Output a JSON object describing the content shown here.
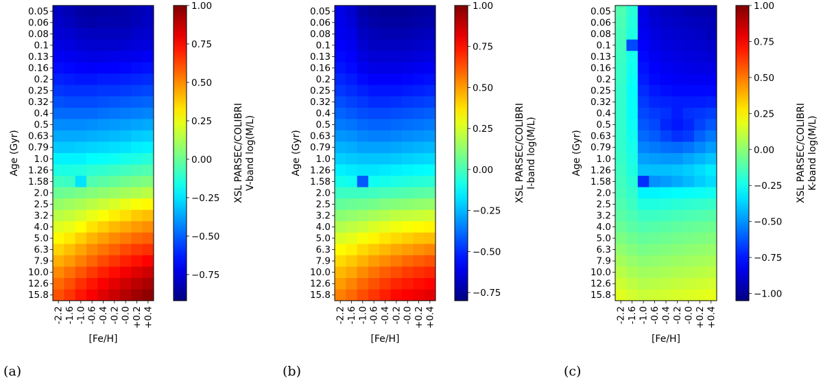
{
  "chart_data": [
    {
      "type": "heatmap",
      "panel_label": "(a)",
      "xlabel": "[Fe/H]",
      "ylabel": "Age (Gyr)",
      "colorbar_label": [
        "XSL PARSEC/COLIBRI",
        "V-band log(M/L)"
      ],
      "colorbar_range": [
        -0.92,
        1.0
      ],
      "colorbar_ticks": [
        "1.00",
        "0.75",
        "0.50",
        "0.25",
        "0.00",
        "−0.25",
        "−0.50",
        "−0.75"
      ],
      "colorbar_tick_values": [
        1.0,
        0.75,
        0.5,
        0.25,
        0.0,
        -0.25,
        -0.5,
        -0.75
      ],
      "x_ticks": [
        "-2.2",
        "-1.6",
        "-1.0",
        "-0.6",
        "-0.4",
        "-0.2",
        "-0.0",
        "+0.2",
        "+0.4"
      ],
      "y_ticks": [
        "0.05",
        "0.06",
        "0.08",
        "0.1",
        "0.13",
        "0.16",
        "0.2",
        "0.25",
        "0.32",
        "0.4",
        "0.5",
        "0.63",
        "0.79",
        "1.0",
        "1.26",
        "1.58",
        "2.0",
        "2.5",
        "3.2",
        "4.0",
        "5.0",
        "6.3",
        "7.9",
        "10.0",
        "12.6",
        "15.8"
      ],
      "values": [
        [
          -0.8,
          -0.82,
          -0.85,
          -0.86,
          -0.85,
          -0.85,
          -0.84,
          -0.82,
          -0.8
        ],
        [
          -0.78,
          -0.8,
          -0.83,
          -0.84,
          -0.83,
          -0.83,
          -0.83,
          -0.81,
          -0.79
        ],
        [
          -0.76,
          -0.77,
          -0.79,
          -0.8,
          -0.8,
          -0.8,
          -0.8,
          -0.78,
          -0.77
        ],
        [
          -0.73,
          -0.74,
          -0.76,
          -0.77,
          -0.77,
          -0.77,
          -0.76,
          -0.75,
          -0.74
        ],
        [
          -0.7,
          -0.71,
          -0.72,
          -0.73,
          -0.73,
          -0.72,
          -0.72,
          -0.71,
          -0.7
        ],
        [
          -0.66,
          -0.67,
          -0.68,
          -0.69,
          -0.68,
          -0.68,
          -0.67,
          -0.66,
          -0.65
        ],
        [
          -0.62,
          -0.63,
          -0.64,
          -0.64,
          -0.63,
          -0.63,
          -0.62,
          -0.61,
          -0.6
        ],
        [
          -0.58,
          -0.59,
          -0.59,
          -0.59,
          -0.58,
          -0.58,
          -0.57,
          -0.56,
          -0.55
        ],
        [
          -0.53,
          -0.54,
          -0.54,
          -0.54,
          -0.53,
          -0.52,
          -0.51,
          -0.5,
          -0.49
        ],
        [
          -0.48,
          -0.48,
          -0.48,
          -0.48,
          -0.47,
          -0.46,
          -0.45,
          -0.44,
          -0.43
        ],
        [
          -0.42,
          -0.42,
          -0.42,
          -0.41,
          -0.4,
          -0.39,
          -0.38,
          -0.37,
          -0.36
        ],
        [
          -0.36,
          -0.36,
          -0.36,
          -0.35,
          -0.34,
          -0.33,
          -0.32,
          -0.3,
          -0.29
        ],
        [
          -0.3,
          -0.3,
          -0.29,
          -0.28,
          -0.27,
          -0.26,
          -0.25,
          -0.23,
          -0.22
        ],
        [
          -0.22,
          -0.22,
          -0.22,
          -0.2,
          -0.19,
          -0.18,
          -0.16,
          -0.15,
          -0.13
        ],
        [
          -0.15,
          -0.15,
          -0.14,
          -0.12,
          -0.11,
          -0.09,
          -0.08,
          -0.06,
          -0.05
        ],
        [
          -0.08,
          -0.09,
          -0.25,
          -0.05,
          -0.03,
          -0.01,
          0.01,
          0.03,
          0.04
        ],
        [
          0.0,
          0.01,
          0.03,
          0.05,
          0.07,
          0.09,
          0.11,
          0.13,
          0.15
        ],
        [
          0.08,
          0.1,
          0.12,
          0.15,
          0.18,
          0.21,
          0.24,
          0.27,
          0.29
        ],
        [
          0.15,
          0.17,
          0.2,
          0.24,
          0.27,
          0.31,
          0.34,
          0.38,
          0.4
        ],
        [
          0.22,
          0.24,
          0.28,
          0.33,
          0.37,
          0.41,
          0.44,
          0.47,
          0.49
        ],
        [
          0.29,
          0.32,
          0.37,
          0.42,
          0.46,
          0.5,
          0.53,
          0.56,
          0.58
        ],
        [
          0.36,
          0.4,
          0.45,
          0.5,
          0.54,
          0.58,
          0.62,
          0.65,
          0.67
        ],
        [
          0.43,
          0.47,
          0.52,
          0.57,
          0.62,
          0.66,
          0.7,
          0.73,
          0.76
        ],
        [
          0.5,
          0.55,
          0.6,
          0.65,
          0.7,
          0.74,
          0.78,
          0.82,
          0.85
        ],
        [
          0.56,
          0.61,
          0.67,
          0.72,
          0.77,
          0.81,
          0.85,
          0.89,
          0.92
        ],
        [
          0.61,
          0.66,
          0.72,
          0.77,
          0.82,
          0.86,
          0.9,
          0.94,
          0.97
        ]
      ]
    },
    {
      "type": "heatmap",
      "panel_label": "(b)",
      "xlabel": "[Fe/H]",
      "ylabel": "Age (Gyr)",
      "colorbar_label": [
        "XSL PARSEC/COLIBRI",
        "I-band log(M/L)"
      ],
      "colorbar_range": [
        -0.8,
        1.0
      ],
      "colorbar_ticks": [
        "1.00",
        "0.75",
        "0.50",
        "0.25",
        "0.00",
        "−0.25",
        "−0.50",
        "−0.75"
      ],
      "colorbar_tick_values": [
        1.0,
        0.75,
        0.5,
        0.25,
        0.0,
        -0.25,
        -0.5,
        -0.75
      ],
      "x_ticks": [
        "-2.2",
        "-1.6",
        "-1.0",
        "-0.6",
        "-0.4",
        "-0.2",
        "-0.0",
        "+0.2",
        "+0.4"
      ],
      "y_ticks": [
        "0.05",
        "0.06",
        "0.08",
        "0.1",
        "0.13",
        "0.16",
        "0.2",
        "0.25",
        "0.32",
        "0.4",
        "0.5",
        "0.63",
        "0.79",
        "1.0",
        "1.26",
        "1.58",
        "2.0",
        "2.5",
        "3.2",
        "4.0",
        "5.0",
        "6.3",
        "7.9",
        "10.0",
        "12.6",
        "15.8"
      ],
      "values": [
        [
          -0.62,
          -0.66,
          -0.73,
          -0.75,
          -0.76,
          -0.76,
          -0.76,
          -0.75,
          -0.74
        ],
        [
          -0.61,
          -0.64,
          -0.71,
          -0.73,
          -0.74,
          -0.74,
          -0.74,
          -0.73,
          -0.72
        ],
        [
          -0.6,
          -0.62,
          -0.68,
          -0.7,
          -0.71,
          -0.71,
          -0.71,
          -0.7,
          -0.69
        ],
        [
          -0.58,
          -0.6,
          -0.66,
          -0.68,
          -0.68,
          -0.68,
          -0.68,
          -0.67,
          -0.66
        ],
        [
          -0.56,
          -0.58,
          -0.63,
          -0.65,
          -0.65,
          -0.65,
          -0.65,
          -0.64,
          -0.63
        ],
        [
          -0.54,
          -0.56,
          -0.6,
          -0.62,
          -0.62,
          -0.62,
          -0.61,
          -0.6,
          -0.59
        ],
        [
          -0.51,
          -0.53,
          -0.56,
          -0.58,
          -0.58,
          -0.58,
          -0.57,
          -0.56,
          -0.55
        ],
        [
          -0.48,
          -0.5,
          -0.52,
          -0.54,
          -0.54,
          -0.54,
          -0.53,
          -0.52,
          -0.51
        ],
        [
          -0.44,
          -0.46,
          -0.48,
          -0.5,
          -0.5,
          -0.49,
          -0.48,
          -0.47,
          -0.46
        ],
        [
          -0.4,
          -0.42,
          -0.44,
          -0.45,
          -0.45,
          -0.44,
          -0.43,
          -0.42,
          -0.41
        ],
        [
          -0.36,
          -0.37,
          -0.39,
          -0.4,
          -0.4,
          -0.39,
          -0.38,
          -0.37,
          -0.36
        ],
        [
          -0.31,
          -0.32,
          -0.34,
          -0.35,
          -0.35,
          -0.34,
          -0.33,
          -0.32,
          -0.31
        ],
        [
          -0.26,
          -0.27,
          -0.29,
          -0.29,
          -0.29,
          -0.28,
          -0.27,
          -0.26,
          -0.25
        ],
        [
          -0.21,
          -0.22,
          -0.23,
          -0.23,
          -0.23,
          -0.22,
          -0.21,
          -0.2,
          -0.19
        ],
        [
          -0.15,
          -0.16,
          -0.17,
          -0.17,
          -0.16,
          -0.15,
          -0.14,
          -0.13,
          -0.12
        ],
        [
          -0.09,
          -0.1,
          -0.42,
          -0.1,
          -0.09,
          -0.08,
          -0.07,
          -0.06,
          -0.05
        ],
        [
          -0.02,
          -0.02,
          -0.02,
          -0.01,
          0.0,
          0.01,
          0.02,
          0.03,
          0.04
        ],
        [
          0.05,
          0.06,
          0.07,
          0.08,
          0.1,
          0.11,
          0.12,
          0.13,
          0.14
        ],
        [
          0.12,
          0.13,
          0.15,
          0.17,
          0.19,
          0.21,
          0.22,
          0.23,
          0.24
        ],
        [
          0.19,
          0.21,
          0.23,
          0.26,
          0.28,
          0.3,
          0.32,
          0.33,
          0.34
        ],
        [
          0.26,
          0.28,
          0.31,
          0.34,
          0.37,
          0.39,
          0.41,
          0.43,
          0.44
        ],
        [
          0.33,
          0.35,
          0.39,
          0.42,
          0.45,
          0.48,
          0.5,
          0.52,
          0.54
        ],
        [
          0.39,
          0.42,
          0.46,
          0.5,
          0.53,
          0.56,
          0.59,
          0.61,
          0.63
        ],
        [
          0.45,
          0.48,
          0.53,
          0.57,
          0.61,
          0.64,
          0.67,
          0.69,
          0.71
        ],
        [
          0.5,
          0.54,
          0.59,
          0.63,
          0.67,
          0.71,
          0.73,
          0.75,
          0.77
        ],
        [
          0.55,
          0.59,
          0.64,
          0.68,
          0.72,
          0.76,
          0.78,
          0.8,
          0.82
        ]
      ]
    },
    {
      "type": "heatmap",
      "panel_label": "(c)",
      "xlabel": "[Fe/H]",
      "ylabel": "Age (Gyr)",
      "colorbar_label": [
        "XSL PARSEC/COLIBRI",
        "K-band log(M/L)"
      ],
      "colorbar_range": [
        -1.05,
        1.0
      ],
      "colorbar_ticks": [
        "1.00",
        "0.75",
        "0.50",
        "0.25",
        "0.00",
        "−0.25",
        "−0.50",
        "−0.75",
        "−1.00"
      ],
      "colorbar_tick_values": [
        1.0,
        0.75,
        0.5,
        0.25,
        0.0,
        -0.25,
        -0.5,
        -0.75,
        -1.0
      ],
      "x_ticks": [
        "-2.2",
        "-1.6",
        "-1.0",
        "-0.6",
        "-0.4",
        "-0.2",
        "-0.0",
        "+0.2",
        "+0.4"
      ],
      "y_ticks": [
        "0.05",
        "0.06",
        "0.08",
        "0.1",
        "0.13",
        "0.16",
        "0.2",
        "0.25",
        "0.32",
        "0.4",
        "0.5",
        "0.63",
        "0.79",
        "1.0",
        "1.26",
        "1.58",
        "2.0",
        "2.5",
        "3.2",
        "4.0",
        "5.0",
        "6.3",
        "7.9",
        "10.0",
        "12.6",
        "15.8"
      ],
      "values": [
        [
          -0.12,
          -0.2,
          -0.85,
          -0.9,
          -0.92,
          -0.93,
          -0.95,
          -0.96,
          -0.96
        ],
        [
          -0.13,
          -0.21,
          -0.84,
          -0.88,
          -0.9,
          -0.91,
          -0.92,
          -0.93,
          -0.94
        ],
        [
          -0.14,
          -0.22,
          -0.82,
          -0.86,
          -0.88,
          -0.89,
          -0.9,
          -0.91,
          -0.93
        ],
        [
          -0.15,
          -0.65,
          -0.8,
          -0.84,
          -0.86,
          -0.87,
          -0.88,
          -0.89,
          -0.9
        ],
        [
          -0.16,
          -0.24,
          -0.78,
          -0.82,
          -0.84,
          -0.85,
          -0.86,
          -0.87,
          -0.88
        ],
        [
          -0.17,
          -0.25,
          -0.76,
          -0.8,
          -0.82,
          -0.83,
          -0.84,
          -0.85,
          -0.85
        ],
        [
          -0.17,
          -0.26,
          -0.74,
          -0.78,
          -0.8,
          -0.81,
          -0.82,
          -0.82,
          -0.82
        ],
        [
          -0.18,
          -0.27,
          -0.71,
          -0.75,
          -0.77,
          -0.78,
          -0.78,
          -0.78,
          -0.78
        ],
        [
          -0.18,
          -0.27,
          -0.68,
          -0.72,
          -0.73,
          -0.74,
          -0.74,
          -0.74,
          -0.73
        ],
        [
          -0.18,
          -0.27,
          -0.65,
          -0.68,
          -0.7,
          -0.74,
          -0.7,
          -0.69,
          -0.67
        ],
        [
          -0.18,
          -0.26,
          -0.62,
          -0.65,
          -0.72,
          -0.75,
          -0.72,
          -0.66,
          -0.62
        ],
        [
          -0.18,
          -0.25,
          -0.58,
          -0.61,
          -0.66,
          -0.7,
          -0.68,
          -0.6,
          -0.55
        ],
        [
          -0.18,
          -0.24,
          -0.53,
          -0.55,
          -0.57,
          -0.58,
          -0.56,
          -0.52,
          -0.48
        ],
        [
          -0.17,
          -0.23,
          -0.47,
          -0.48,
          -0.49,
          -0.49,
          -0.46,
          -0.43,
          -0.4
        ],
        [
          -0.16,
          -0.22,
          -0.41,
          -0.41,
          -0.41,
          -0.4,
          -0.38,
          -0.35,
          -0.32
        ],
        [
          -0.15,
          -0.2,
          -0.7,
          -0.5,
          -0.48,
          -0.45,
          -0.42,
          -0.38,
          -0.35
        ],
        [
          -0.14,
          -0.18,
          -0.3,
          -0.3,
          -0.29,
          -0.28,
          -0.27,
          -0.26,
          -0.25
        ],
        [
          -0.12,
          -0.16,
          -0.22,
          -0.22,
          -0.21,
          -0.2,
          -0.19,
          -0.18,
          -0.17
        ],
        [
          -0.1,
          -0.13,
          -0.16,
          -0.16,
          -0.15,
          -0.14,
          -0.13,
          -0.12,
          -0.11
        ],
        [
          -0.07,
          -0.1,
          -0.12,
          -0.11,
          -0.1,
          -0.09,
          -0.08,
          -0.07,
          -0.06
        ],
        [
          -0.03,
          -0.06,
          -0.08,
          -0.07,
          -0.06,
          -0.05,
          -0.04,
          -0.03,
          -0.02
        ],
        [
          0.01,
          -0.02,
          -0.04,
          -0.03,
          -0.02,
          -0.01,
          0.0,
          0.01,
          0.02
        ],
        [
          0.05,
          0.02,
          0.0,
          0.01,
          0.02,
          0.03,
          0.04,
          0.05,
          0.06
        ],
        [
          0.09,
          0.06,
          0.04,
          0.05,
          0.06,
          0.07,
          0.08,
          0.09,
          0.1
        ],
        [
          0.13,
          0.1,
          0.08,
          0.09,
          0.1,
          0.11,
          0.12,
          0.13,
          0.14
        ],
        [
          0.17,
          0.14,
          0.12,
          0.13,
          0.14,
          0.15,
          0.16,
          0.17,
          0.18
        ]
      ]
    }
  ]
}
